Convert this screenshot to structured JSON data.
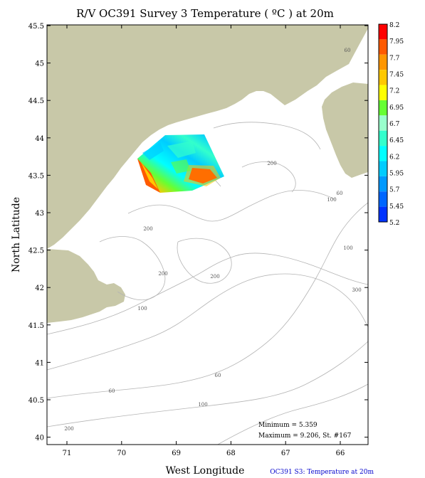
{
  "title": "R/V OC391 Survey 3 Temperature ( ºC ) at 20m",
  "xlabel": "West Longitude",
  "ylabel": "North Latitude",
  "footer": "OC391 S3: Temperature at 20m",
  "stats": {
    "minimum": "Minimum = 5.359",
    "maximum": "Maximum = 9.206, St. #167"
  },
  "x_ticks": [
    "71",
    "70",
    "69",
    "68",
    "67",
    "66"
  ],
  "y_ticks": [
    "45.5",
    "45",
    "44.5",
    "44",
    "43.5",
    "43",
    "42.5",
    "42",
    "41.5",
    "41",
    "40.5",
    "40"
  ],
  "colorbar": {
    "labels": [
      "8.2",
      "7.95",
      "7.7",
      "7.45",
      "7.2",
      "6.95",
      "6.7",
      "6.45",
      "6.2",
      "5.95",
      "5.7",
      "5.45",
      "5.2"
    ],
    "colors": [
      "#ff0000",
      "#ff5a00",
      "#ff9600",
      "#ffc800",
      "#ffff00",
      "#66ff33",
      "#99ffcc",
      "#33ffcc",
      "#00ffff",
      "#00ccff",
      "#0099ff",
      "#0066ff",
      "#0033ff"
    ]
  },
  "contour_labels": [
    {
      "text": "60"
    },
    {
      "text": "200"
    },
    {
      "text": "60"
    },
    {
      "text": "100"
    },
    {
      "text": "200"
    },
    {
      "text": "100"
    },
    {
      "text": "200"
    },
    {
      "text": "200"
    },
    {
      "text": "300"
    },
    {
      "text": "100"
    },
    {
      "text": "60"
    },
    {
      "text": "60"
    },
    {
      "text": "100"
    },
    {
      "text": "200"
    }
  ],
  "land_color": "#c8c8a8",
  "contour_color": "#b4b4b4"
}
